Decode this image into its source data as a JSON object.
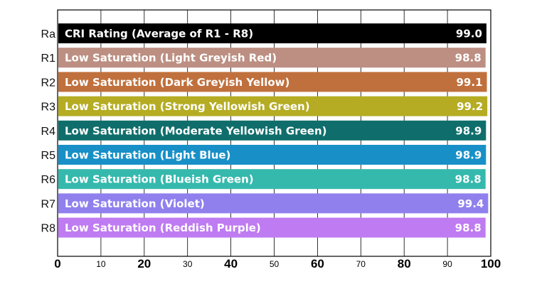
{
  "chart_data": {
    "type": "bar",
    "orientation": "horizontal",
    "categories": [
      "Ra",
      "R1",
      "R2",
      "R3",
      "R4",
      "R5",
      "R6",
      "R7",
      "R8"
    ],
    "bar_labels": [
      "CRI Rating (Average of R1 - R8)",
      "Low Saturation (Light Greyish Red)",
      "Low Saturation (Dark Greyish Yellow)",
      "Low Saturation (Strong Yellowish Green)",
      "Low Saturation (Moderate Yellowish Green)",
      "Low Saturation (Light Blue)",
      "Low Saturation (Blueish Green)",
      "Low Saturation (Violet)",
      "Low Saturation (Reddish Purple)"
    ],
    "values": [
      99.0,
      98.8,
      99.1,
      99.2,
      98.9,
      98.9,
      98.8,
      99.4,
      98.8
    ],
    "value_labels": [
      "99.0",
      "98.8",
      "99.1",
      "99.2",
      "98.9",
      "98.9",
      "98.8",
      "99.4",
      "98.8"
    ],
    "colors": [
      "#000000",
      "#bc8f82",
      "#c0703d",
      "#b5ac23",
      "#0f6e6b",
      "#1890c7",
      "#35b9ad",
      "#8f80ee",
      "#bf7bf2"
    ],
    "xlim": [
      0,
      100
    ],
    "xticks": [
      {
        "value": 0,
        "label": "0",
        "major": true
      },
      {
        "value": 10,
        "label": "10",
        "major": false
      },
      {
        "value": 20,
        "label": "20",
        "major": true
      },
      {
        "value": 30,
        "label": "30",
        "major": false
      },
      {
        "value": 40,
        "label": "40",
        "major": true
      },
      {
        "value": 50,
        "label": "50",
        "major": false
      },
      {
        "value": 60,
        "label": "60",
        "major": true
      },
      {
        "value": 70,
        "label": "70",
        "major": false
      },
      {
        "value": 80,
        "label": "80",
        "major": true
      },
      {
        "value": 90,
        "label": "90",
        "major": false
      },
      {
        "value": 100,
        "label": "100",
        "major": true
      }
    ],
    "grid": true,
    "legend": "none"
  }
}
